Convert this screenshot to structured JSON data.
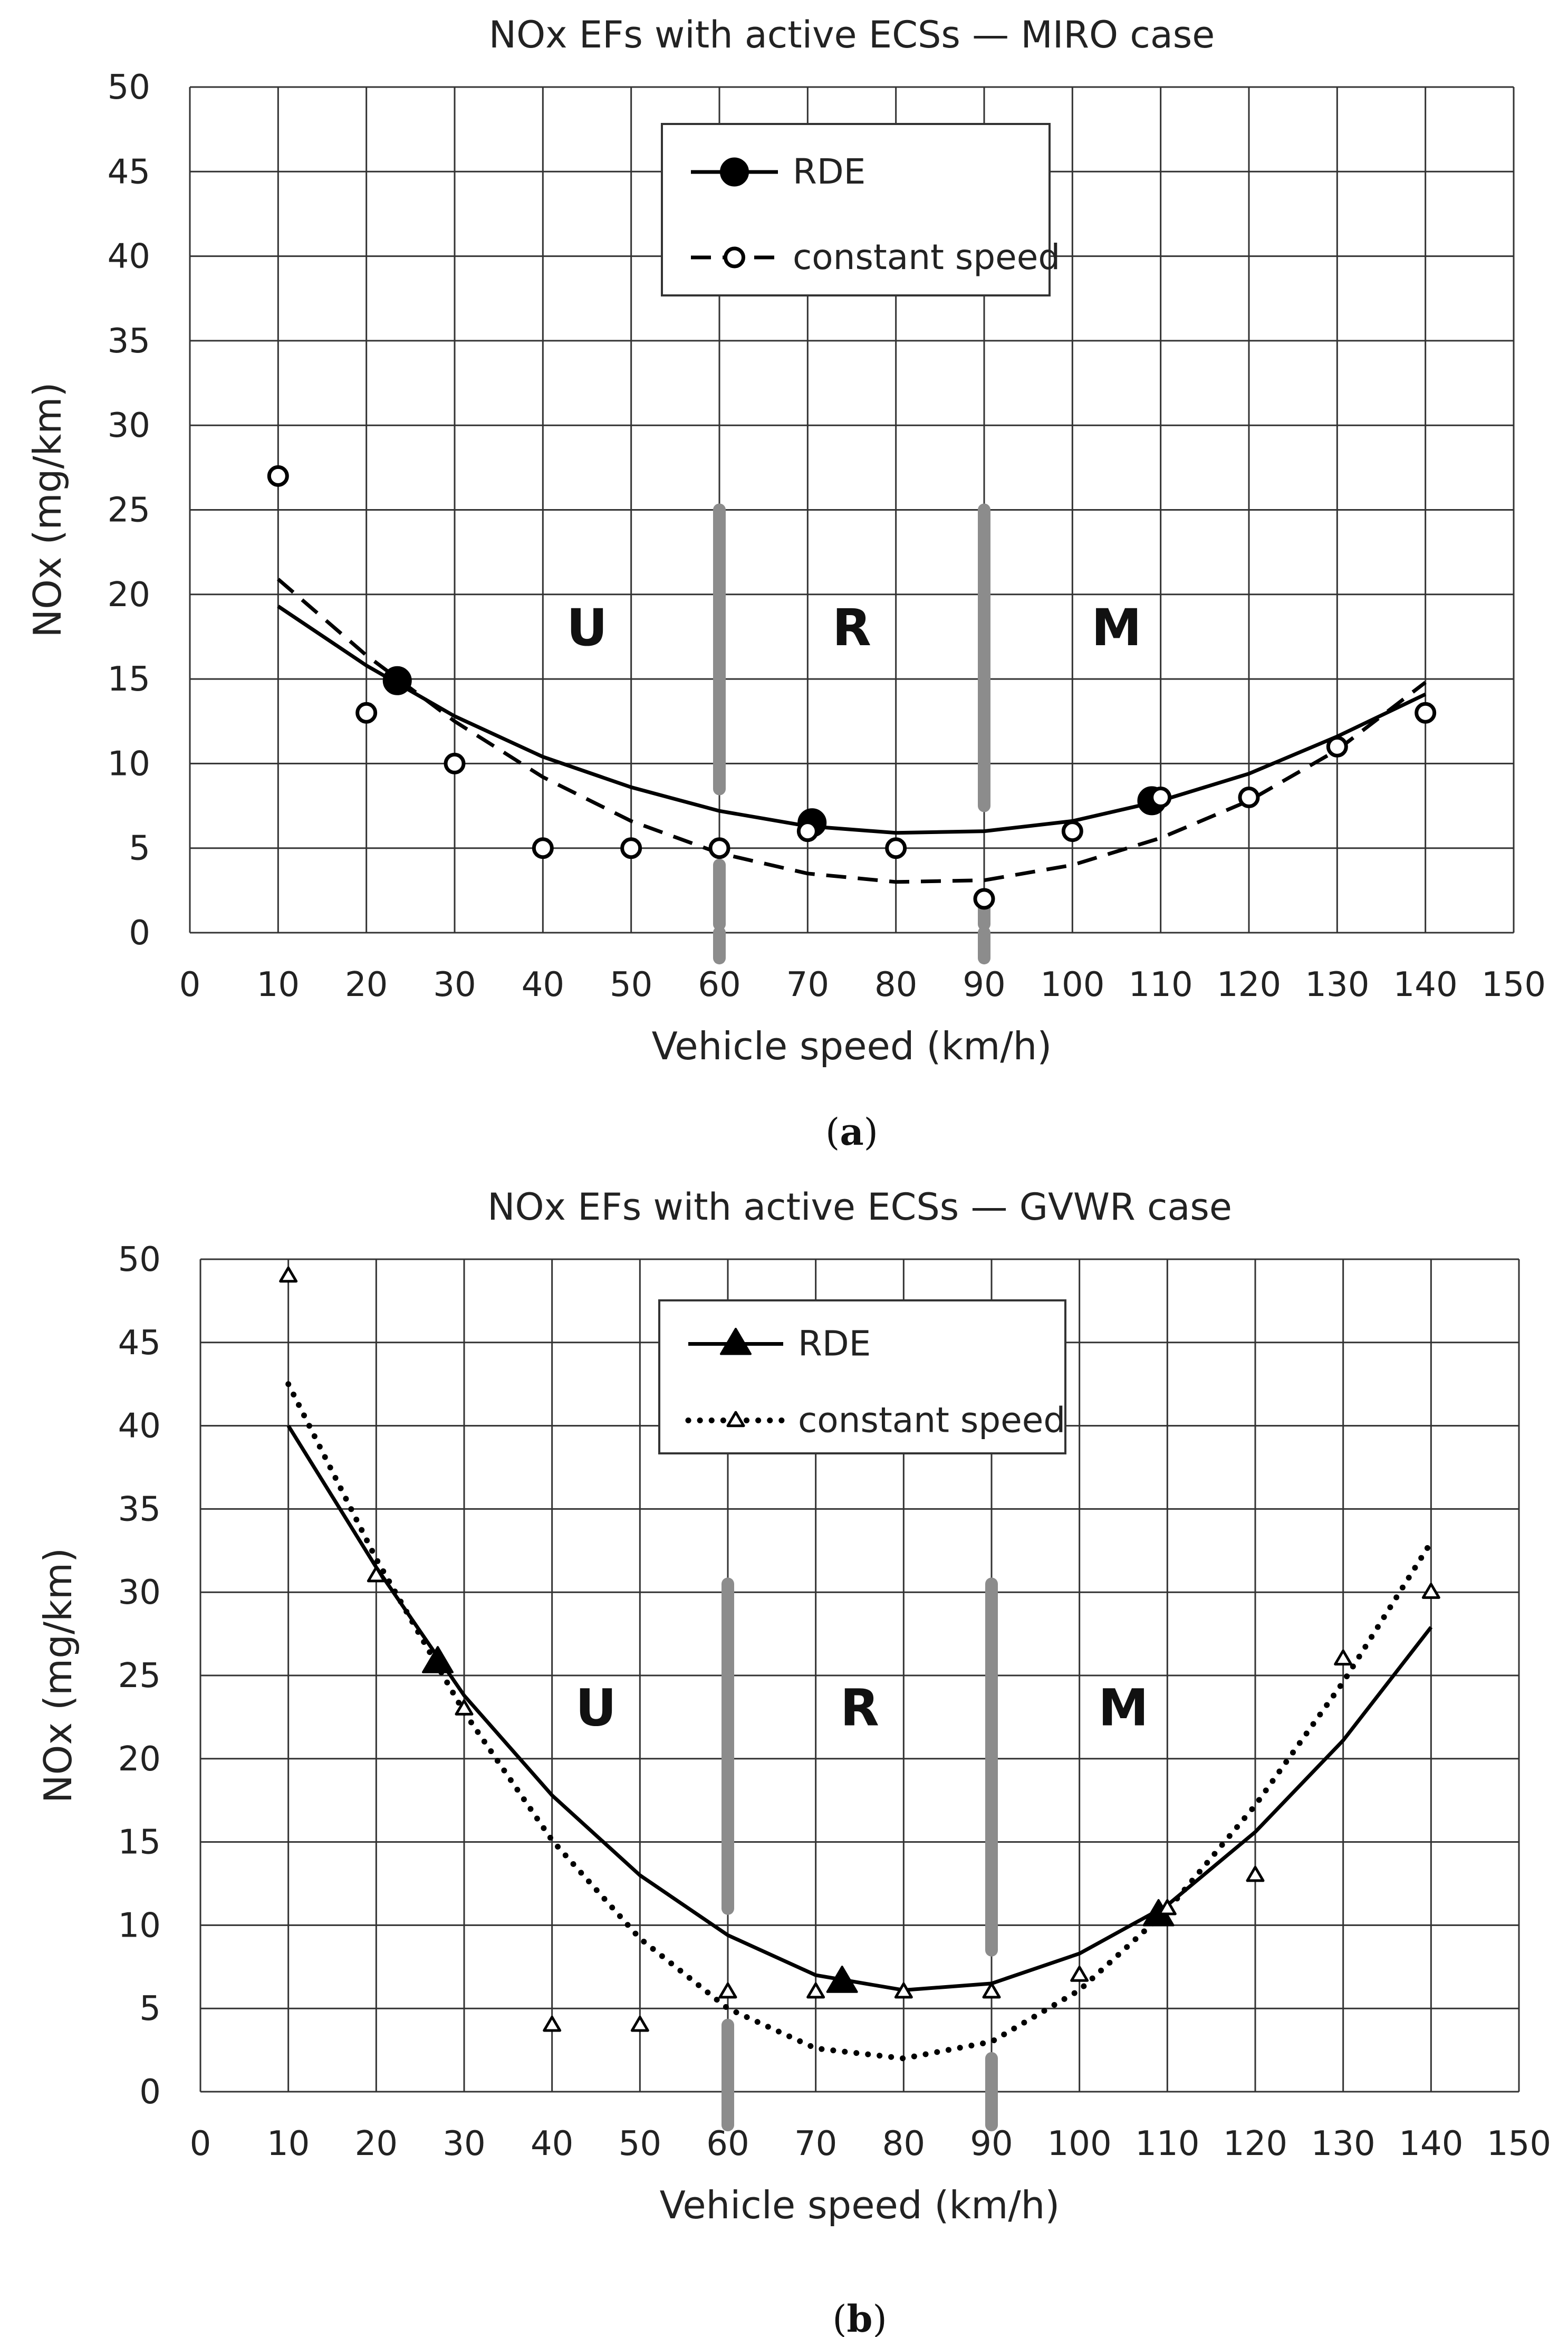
{
  "colors": {
    "grid": "#333333",
    "line": "#000000",
    "boundary": "#8c8c8c",
    "background": "#ffffff"
  },
  "chart_data": [
    {
      "type": "scatter",
      "title": "NOx EFs with active ECSs — MIRO case",
      "xlabel": "Vehicle speed (km/h)",
      "ylabel": "NOx (mg/km)",
      "xlim": [
        0,
        150
      ],
      "ylim": [
        0,
        50
      ],
      "x_ticks": [
        "0",
        "10",
        "20",
        "30",
        "40",
        "50",
        "60",
        "70",
        "80",
        "90",
        "100",
        "110",
        "120",
        "130",
        "140",
        "150"
      ],
      "y_ticks": [
        "0",
        "5",
        "10",
        "15",
        "20",
        "25",
        "30",
        "35",
        "40",
        "45",
        "50"
      ],
      "grid": true,
      "legend_position": "top-center",
      "marker": "circle",
      "caption": {
        "open": "(",
        "label": "a",
        "close": ")"
      },
      "regions": [
        {
          "label": "U",
          "x": 45,
          "y": 17
        },
        {
          "label": "R",
          "x": 75,
          "y": 17
        },
        {
          "label": "M",
          "x": 105,
          "y": 17
        }
      ],
      "boundaries": [
        {
          "x": 60,
          "segments": [
            [
              0,
              -1.5
            ],
            [
              4,
              0.5
            ],
            [
              25,
              8.5
            ]
          ]
        },
        {
          "x": 90,
          "segments": [
            [
              0,
              -1.5
            ],
            [
              2,
              0.5
            ],
            [
              25,
              7.5
            ]
          ]
        }
      ],
      "series": [
        {
          "name": "RDE",
          "style": "solid",
          "filled": true,
          "x": [
            23.5,
            70.5,
            109
          ],
          "y": [
            14.9,
            6.5,
            7.8
          ],
          "fit": {
            "x": [
              10,
              20,
              30,
              40,
              50,
              60,
              70,
              80,
              90,
              100,
              110,
              120,
              130,
              140
            ],
            "y": [
              19.3,
              15.8,
              12.8,
              10.4,
              8.6,
              7.2,
              6.3,
              5.9,
              6.0,
              6.6,
              7.8,
              9.4,
              11.6,
              14.1
            ]
          }
        },
        {
          "name": "constant speed",
          "style": "dashed",
          "filled": false,
          "x": [
            10,
            20,
            30,
            40,
            50,
            60,
            70,
            80,
            90,
            100,
            110,
            120,
            130,
            140
          ],
          "y": [
            27,
            13,
            10,
            5,
            5,
            5,
            6,
            5,
            2,
            6,
            8,
            8,
            11,
            13
          ],
          "fit": {
            "x": [
              10,
              20,
              30,
              40,
              50,
              60,
              70,
              80,
              90,
              100,
              110,
              120,
              130,
              140
            ],
            "y": [
              20.9,
              16.4,
              12.5,
              9.2,
              6.6,
              4.7,
              3.5,
              3.0,
              3.1,
              4.0,
              5.6,
              7.8,
              10.8,
              14.8
            ]
          }
        }
      ]
    },
    {
      "type": "scatter",
      "title": "NOx EFs with active ECSs — GVWR case",
      "xlabel": "Vehicle speed (km/h)",
      "ylabel": "NOx (mg/km)",
      "xlim": [
        0,
        150
      ],
      "ylim": [
        0,
        50
      ],
      "x_ticks": [
        "0",
        "10",
        "20",
        "30",
        "40",
        "50",
        "60",
        "70",
        "80",
        "90",
        "100",
        "110",
        "120",
        "130",
        "140",
        "150"
      ],
      "y_ticks": [
        "0",
        "5",
        "10",
        "15",
        "20",
        "25",
        "30",
        "35",
        "40",
        "45",
        "50"
      ],
      "grid": true,
      "legend_position": "top-center",
      "marker": "triangle",
      "caption": {
        "open": "(",
        "label": "b",
        "close": ")"
      },
      "regions": [
        {
          "label": "U",
          "x": 45,
          "y": 22
        },
        {
          "label": "R",
          "x": 75,
          "y": 22
        },
        {
          "label": "M",
          "x": 105,
          "y": 22
        }
      ],
      "boundaries": [
        {
          "x": 60,
          "segments": [
            [
              -2,
              4
            ],
            [
              11,
              30.5
            ]
          ]
        },
        {
          "x": 90,
          "segments": [
            [
              -2,
              2
            ],
            [
              8.5,
              30.5
            ]
          ]
        }
      ],
      "series": [
        {
          "name": "RDE",
          "style": "solid",
          "filled": true,
          "x": [
            27,
            73,
            109
          ],
          "y": [
            25.8,
            6.6,
            10.6
          ],
          "fit": {
            "x": [
              10,
              20,
              30,
              40,
              50,
              60,
              70,
              80,
              90,
              100,
              110,
              120,
              130,
              140
            ],
            "y": [
              40.0,
              31.5,
              23.8,
              17.8,
              13.0,
              9.4,
              7.0,
              6.1,
              6.5,
              8.3,
              11.2,
              15.6,
              21.1,
              27.9
            ]
          }
        },
        {
          "name": "constant speed",
          "style": "dotted",
          "filled": false,
          "x": [
            10,
            20,
            30,
            40,
            50,
            60,
            70,
            80,
            90,
            100,
            110,
            120,
            130,
            140
          ],
          "y": [
            49,
            31,
            23,
            4,
            4,
            6,
            6,
            6,
            6,
            7,
            11,
            13,
            26,
            30
          ],
          "fit": {
            "x": [
              10,
              20,
              30,
              40,
              50,
              60,
              70,
              80,
              90,
              100,
              110,
              120,
              130,
              140
            ],
            "y": [
              42.5,
              32.0,
              22.8,
              15.1,
              9.2,
              5.0,
              2.6,
              2.0,
              3.0,
              6.1,
              10.9,
              17.2,
              24.6,
              33.0
            ]
          }
        }
      ]
    }
  ]
}
